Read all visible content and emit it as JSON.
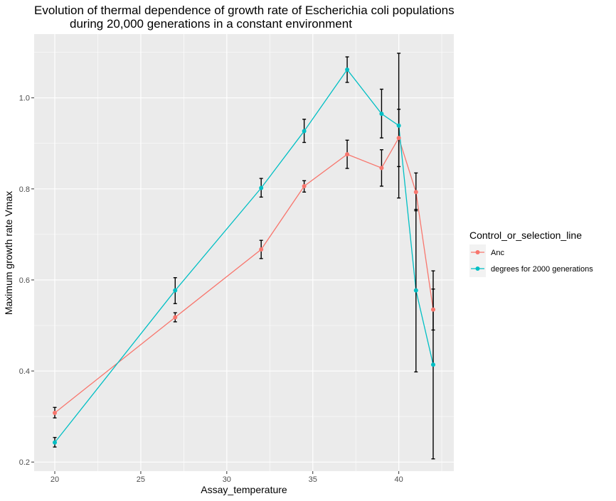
{
  "chart_data": {
    "type": "line",
    "title_lines": [
      "Evolution of thermal dependence of growth rate of Escherichia coli populations",
      "during 20,000 generations in a constant environment"
    ],
    "xlabel": "Assay_temperature",
    "ylabel": "Maximum growth rate Vmax",
    "xlim": [
      18.8,
      43.2
    ],
    "ylim": [
      0.18,
      1.14
    ],
    "x_ticks": [
      20,
      25,
      30,
      35,
      40
    ],
    "y_ticks": [
      0.2,
      0.4,
      0.6,
      0.8,
      1.0
    ],
    "y_tick_labels": [
      "0.2",
      "0.4",
      "0.6",
      "0.8",
      "1.0"
    ],
    "grid": true,
    "legend": {
      "title": "Control_or_selection_line",
      "position": "right"
    },
    "series": [
      {
        "name": "Anc",
        "color": "#F8766D",
        "x": [
          20,
          27,
          32,
          34.5,
          37,
          39,
          40,
          41,
          42
        ],
        "y": [
          0.308,
          0.518,
          0.667,
          0.806,
          0.876,
          0.846,
          0.912,
          0.793,
          0.535
        ],
        "err_low": [
          0.297,
          0.508,
          0.647,
          0.793,
          0.845,
          0.806,
          0.849,
          0.752,
          0.49
        ],
        "err_high": [
          0.32,
          0.528,
          0.687,
          0.818,
          0.907,
          0.886,
          0.975,
          0.835,
          0.58
        ]
      },
      {
        "name": "degrees for 2000 generations",
        "color": "#00BFC4",
        "x": [
          20,
          27,
          32,
          34.5,
          37,
          39,
          40,
          41,
          42
        ],
        "y": [
          0.243,
          0.577,
          0.802,
          0.927,
          1.062,
          0.965,
          0.939,
          0.577,
          0.414
        ],
        "err_low": [
          0.233,
          0.548,
          0.782,
          0.902,
          1.034,
          0.912,
          0.78,
          0.398,
          0.207
        ],
        "err_high": [
          0.254,
          0.605,
          0.823,
          0.953,
          1.09,
          1.019,
          1.098,
          0.755,
          0.62
        ]
      }
    ]
  }
}
